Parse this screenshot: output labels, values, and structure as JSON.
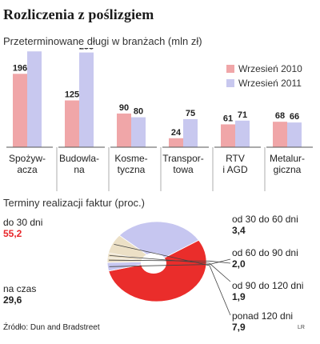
{
  "title": "Rozliczenia z poślizgiem",
  "source": "Źródło: Dun and Bradstreet",
  "credit": "LR",
  "colors": {
    "accent_red": "#e8262a",
    "bar_2010": "#f0a6a8",
    "bar_2011": "#c8c8ef",
    "pie_red": "#ea2d2b",
    "pie_blue": "#c6c6f0",
    "pie_beige": "#ece0c6"
  },
  "chart_data": [
    {
      "type": "bar",
      "title": "Przeterminowane długi w branżach (mln zł)",
      "categories": [
        "Spożyw-\nacza",
        "Budowla-\nna",
        "Kosme-\ntyczna",
        "Transpor-\ntowa",
        "RTV\ni AGD",
        "Metalur-\ngiczna"
      ],
      "series": [
        {
          "name": "Wrzesień 2010",
          "values": [
            196,
            125,
            90,
            24,
            61,
            68
          ]
        },
        {
          "name": "Wrzesień 2011",
          "values": [
            256,
            253,
            80,
            75,
            71,
            66
          ]
        }
      ],
      "ylim": [
        0,
        265
      ],
      "legend": "top-right",
      "grid": false
    },
    {
      "type": "pie",
      "title": "Terminy realizacji faktur (proc.)",
      "slices": [
        {
          "label": "do 30 dni",
          "value": 55.2,
          "value_text": "55,2"
        },
        {
          "label": "od 30 do 60 dni",
          "value": 3.4,
          "value_text": "3,4"
        },
        {
          "label": "od 60 do 90 dni",
          "value": 2.0,
          "value_text": "2,0"
        },
        {
          "label": "od 90 do 120 dni",
          "value": 1.9,
          "value_text": "1,9"
        },
        {
          "label": "ponad 120 dni",
          "value": 7.9,
          "value_text": "7,9"
        },
        {
          "label": "na czas",
          "value": 29.6,
          "value_text": "29,6"
        }
      ]
    }
  ]
}
